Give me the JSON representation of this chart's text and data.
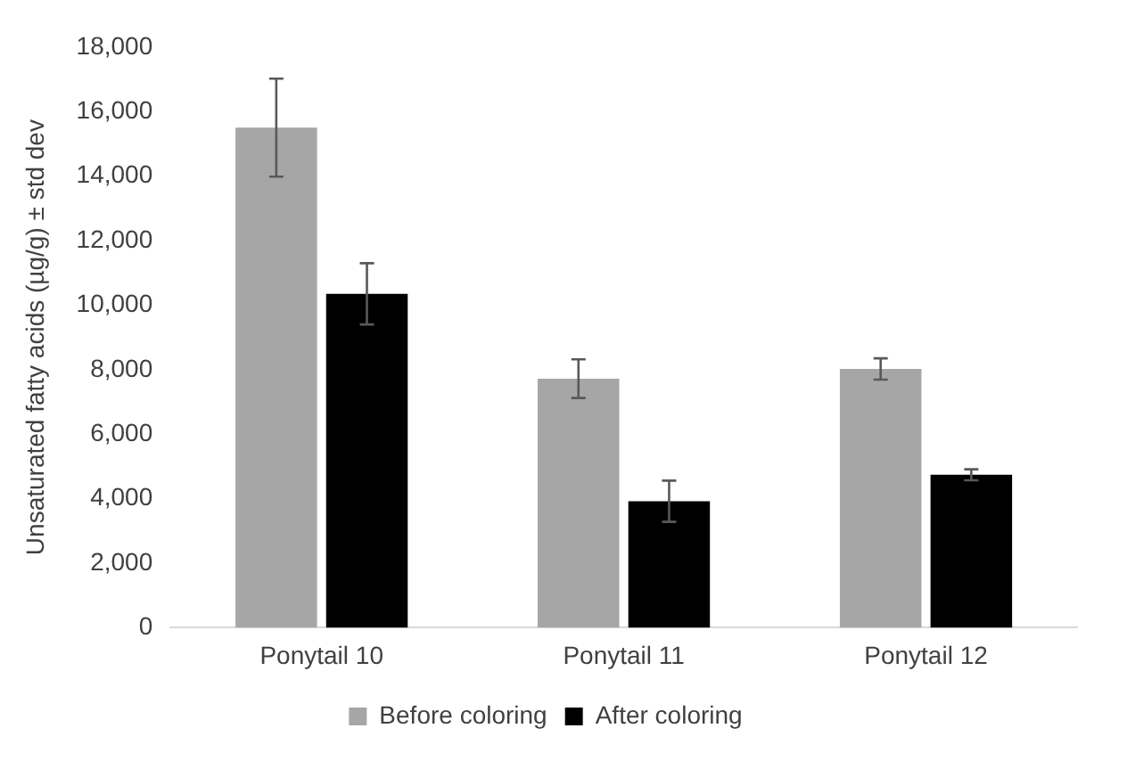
{
  "chart_data": {
    "type": "bar",
    "ylabel": "Unsaturated fatty acids (µg/g) ± std dev",
    "categories": [
      "Ponytail 10",
      "Ponytail 11",
      "Ponytail 12"
    ],
    "series": [
      {
        "name": "Before coloring",
        "color": "#a6a6a6",
        "values": [
          15500,
          7720,
          8020
        ],
        "errors": [
          1520,
          600,
          330
        ]
      },
      {
        "name": "After coloring",
        "color": "#000000",
        "values": [
          10350,
          3920,
          4740
        ],
        "errors": [
          950,
          640,
          170
        ]
      }
    ],
    "ylim": [
      0,
      18000
    ],
    "yticks": [
      0,
      {
        "value": 2000,
        "label": "2,000"
      },
      {
        "value": 4000,
        "label": "4,000"
      },
      {
        "value": 6000,
        "label": "6,000"
      },
      {
        "value": 8000,
        "label": "8,000"
      },
      {
        "value": 10000,
        "label": "10,000"
      },
      {
        "value": 12000,
        "label": "12,000"
      },
      {
        "value": 14000,
        "label": "14,000"
      },
      {
        "value": 16000,
        "label": "16,000"
      },
      {
        "value": 18000,
        "label": "18,000"
      }
    ],
    "grid": false,
    "legend": "bottom"
  }
}
